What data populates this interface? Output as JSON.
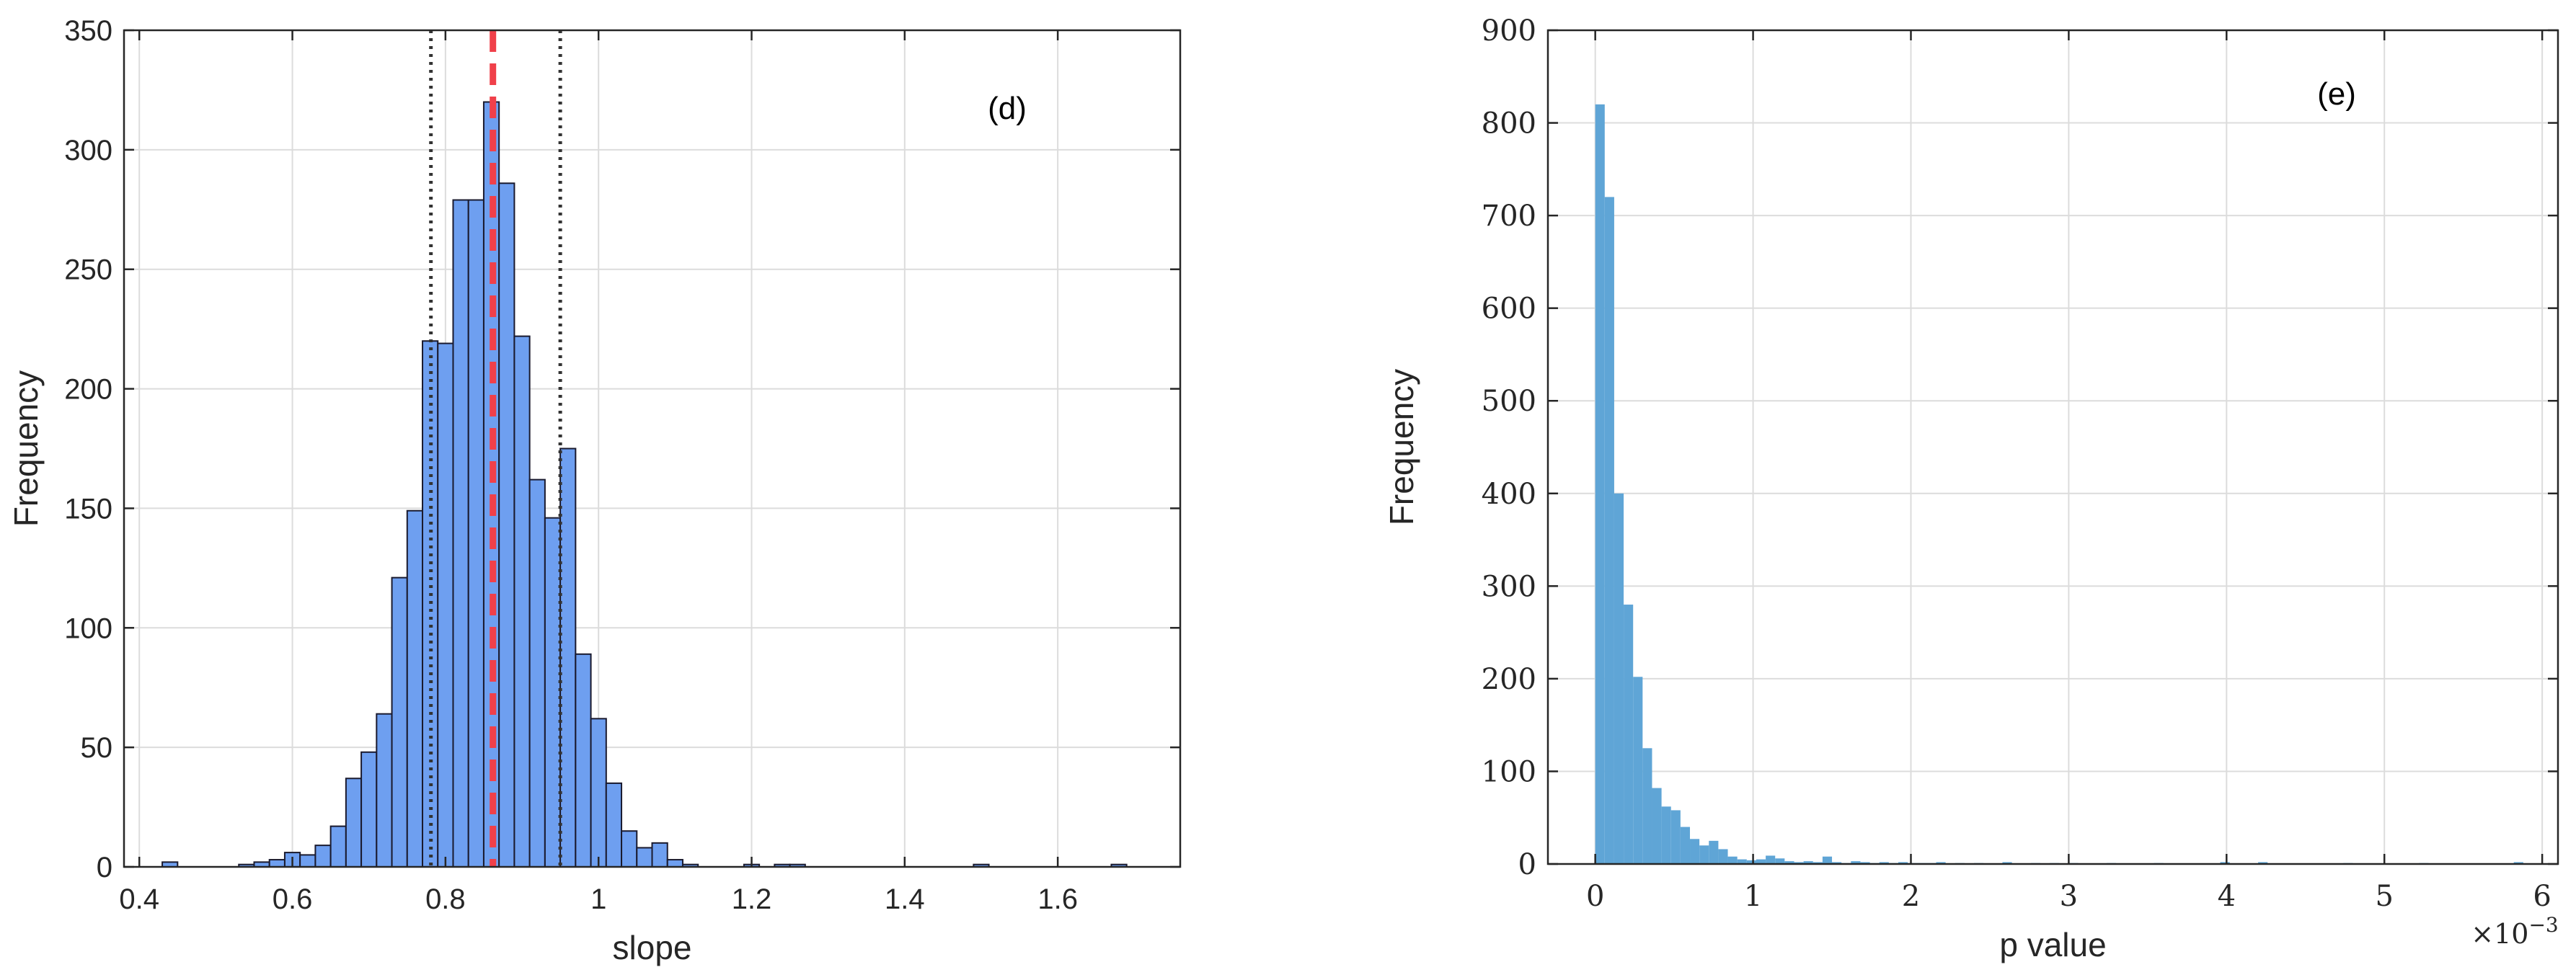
{
  "chart_data": [
    {
      "type": "bar",
      "panel_label": "(d)",
      "xlabel": "slope",
      "ylabel": "Frequency",
      "xlim": [
        0.38,
        1.76
      ],
      "ylim": [
        0,
        350
      ],
      "xticks": [
        "0.4",
        "0.6",
        "0.8",
        "1",
        "1.2",
        "1.4",
        "1.6"
      ],
      "yticks": [
        "0",
        "50",
        "100",
        "150",
        "200",
        "250",
        "300",
        "350"
      ],
      "grid": true,
      "bar_color": "#6e9ff0",
      "edge_color": "#1a1a2e",
      "bin_width": 0.02,
      "bins": [
        {
          "x": 0.44,
          "y": 2
        },
        {
          "x": 0.46,
          "y": 0
        },
        {
          "x": 0.48,
          "y": 0
        },
        {
          "x": 0.5,
          "y": 0
        },
        {
          "x": 0.52,
          "y": 0
        },
        {
          "x": 0.54,
          "y": 1
        },
        {
          "x": 0.56,
          "y": 2
        },
        {
          "x": 0.58,
          "y": 3
        },
        {
          "x": 0.6,
          "y": 6
        },
        {
          "x": 0.62,
          "y": 5
        },
        {
          "x": 0.64,
          "y": 9
        },
        {
          "x": 0.66,
          "y": 17
        },
        {
          "x": 0.68,
          "y": 37
        },
        {
          "x": 0.7,
          "y": 48
        },
        {
          "x": 0.72,
          "y": 64
        },
        {
          "x": 0.74,
          "y": 121
        },
        {
          "x": 0.76,
          "y": 149
        },
        {
          "x": 0.78,
          "y": 220
        },
        {
          "x": 0.8,
          "y": 219
        },
        {
          "x": 0.82,
          "y": 279
        },
        {
          "x": 0.84,
          "y": 279
        },
        {
          "x": 0.86,
          "y": 320
        },
        {
          "x": 0.88,
          "y": 286
        },
        {
          "x": 0.9,
          "y": 222
        },
        {
          "x": 0.92,
          "y": 162
        },
        {
          "x": 0.94,
          "y": 146
        },
        {
          "x": 0.96,
          "y": 175
        },
        {
          "x": 0.98,
          "y": 89
        },
        {
          "x": 1.0,
          "y": 62
        },
        {
          "x": 1.02,
          "y": 35
        },
        {
          "x": 1.04,
          "y": 15
        },
        {
          "x": 1.06,
          "y": 8
        },
        {
          "x": 1.08,
          "y": 10
        },
        {
          "x": 1.1,
          "y": 3
        },
        {
          "x": 1.12,
          "y": 1
        },
        {
          "x": 1.14,
          "y": 0
        },
        {
          "x": 1.16,
          "y": 0
        },
        {
          "x": 1.18,
          "y": 0
        },
        {
          "x": 1.2,
          "y": 1
        },
        {
          "x": 1.22,
          "y": 0
        },
        {
          "x": 1.24,
          "y": 1
        },
        {
          "x": 1.26,
          "y": 1
        },
        {
          "x": 1.28,
          "y": 0
        },
        {
          "x": 1.3,
          "y": 0
        },
        {
          "x": 1.32,
          "y": 0
        },
        {
          "x": 1.34,
          "y": 0
        },
        {
          "x": 1.36,
          "y": 0
        },
        {
          "x": 1.38,
          "y": 0
        },
        {
          "x": 1.4,
          "y": 0
        },
        {
          "x": 1.42,
          "y": 0
        },
        {
          "x": 1.44,
          "y": 0
        },
        {
          "x": 1.46,
          "y": 0
        },
        {
          "x": 1.48,
          "y": 0
        },
        {
          "x": 1.5,
          "y": 1
        },
        {
          "x": 1.52,
          "y": 0
        },
        {
          "x": 1.54,
          "y": 0
        },
        {
          "x": 1.56,
          "y": 0
        },
        {
          "x": 1.58,
          "y": 0
        },
        {
          "x": 1.6,
          "y": 0
        },
        {
          "x": 1.62,
          "y": 0
        },
        {
          "x": 1.64,
          "y": 0
        },
        {
          "x": 1.66,
          "y": 0
        },
        {
          "x": 1.68,
          "y": 1
        }
      ],
      "reference_lines": [
        {
          "x": 0.862,
          "style": "dashed",
          "color": "#f0404a"
        },
        {
          "x": 0.781,
          "style": "dotted",
          "color": "#333333"
        },
        {
          "x": 0.95,
          "style": "dotted",
          "color": "#333333"
        }
      ]
    },
    {
      "type": "bar",
      "panel_label": "(e)",
      "xlabel": "p value",
      "ylabel": "Frequency",
      "xlim": [
        -0.0003,
        0.0061
      ],
      "ylim": [
        0,
        900
      ],
      "xticks": [
        "0",
        "1",
        "2",
        "3",
        "4",
        "5",
        "6"
      ],
      "yticks": [
        "0",
        "100",
        "200",
        "300",
        "400",
        "500",
        "600",
        "700",
        "800",
        "900"
      ],
      "exponent_label": "×10^−3",
      "grid": true,
      "bar_color": "#5fa5d6",
      "bin_width": 6e-05,
      "bins": [
        {
          "x": 3e-05,
          "y": 820
        },
        {
          "x": 9e-05,
          "y": 720
        },
        {
          "x": 0.00015,
          "y": 400
        },
        {
          "x": 0.00021,
          "y": 280
        },
        {
          "x": 0.00027,
          "y": 202
        },
        {
          "x": 0.00033,
          "y": 125
        },
        {
          "x": 0.00039,
          "y": 82
        },
        {
          "x": 0.00045,
          "y": 62
        },
        {
          "x": 0.00051,
          "y": 58
        },
        {
          "x": 0.00057,
          "y": 40
        },
        {
          "x": 0.00063,
          "y": 27
        },
        {
          "x": 0.00069,
          "y": 20
        },
        {
          "x": 0.00075,
          "y": 25
        },
        {
          "x": 0.00081,
          "y": 16
        },
        {
          "x": 0.00087,
          "y": 8
        },
        {
          "x": 0.00093,
          "y": 5
        },
        {
          "x": 0.00099,
          "y": 4
        },
        {
          "x": 0.00105,
          "y": 5
        },
        {
          "x": 0.00111,
          "y": 9
        },
        {
          "x": 0.00117,
          "y": 6
        },
        {
          "x": 0.00123,
          "y": 3
        },
        {
          "x": 0.00129,
          "y": 2
        },
        {
          "x": 0.00135,
          "y": 3
        },
        {
          "x": 0.00141,
          "y": 2
        },
        {
          "x": 0.00147,
          "y": 8
        },
        {
          "x": 0.00153,
          "y": 2
        },
        {
          "x": 0.00159,
          "y": 1
        },
        {
          "x": 0.00165,
          "y": 3
        },
        {
          "x": 0.00171,
          "y": 2
        },
        {
          "x": 0.00177,
          "y": 1
        },
        {
          "x": 0.00183,
          "y": 2
        },
        {
          "x": 0.00189,
          "y": 1
        },
        {
          "x": 0.00195,
          "y": 2
        },
        {
          "x": 0.00201,
          "y": 1
        },
        {
          "x": 0.00207,
          "y": 1
        },
        {
          "x": 0.00213,
          "y": 1
        },
        {
          "x": 0.00219,
          "y": 2
        },
        {
          "x": 0.00231,
          "y": 1
        },
        {
          "x": 0.00243,
          "y": 1
        },
        {
          "x": 0.00261,
          "y": 2
        },
        {
          "x": 0.00279,
          "y": 1
        },
        {
          "x": 0.00291,
          "y": 1
        },
        {
          "x": 0.00303,
          "y": 1
        },
        {
          "x": 0.00327,
          "y": 1
        },
        {
          "x": 0.00357,
          "y": 1
        },
        {
          "x": 0.00399,
          "y": 2
        },
        {
          "x": 0.00423,
          "y": 2
        },
        {
          "x": 0.00477,
          "y": 1
        },
        {
          "x": 0.00525,
          "y": 1
        },
        {
          "x": 0.00585,
          "y": 2
        }
      ]
    }
  ]
}
